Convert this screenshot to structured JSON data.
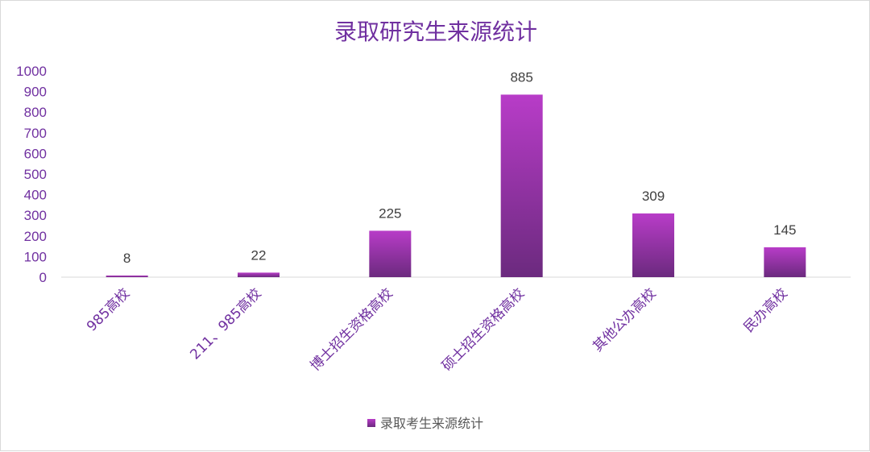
{
  "chart_data": {
    "type": "bar",
    "title": "录取研究生来源统计",
    "categories": [
      "985高校",
      "211、985高校",
      "博士招生资格高校",
      "硕士招生资格高校",
      "其他公办高校",
      "民办高校"
    ],
    "series": [
      {
        "name": "录取考生来源统计",
        "values": [
          8,
          22,
          225,
          885,
          309,
          145
        ]
      }
    ],
    "yticks": [
      "0",
      "100",
      "200",
      "300",
      "400",
      "500",
      "600",
      "700",
      "800",
      "900",
      "1000"
    ],
    "ylim": [
      0,
      1000
    ],
    "grid": false,
    "legend": "bottom",
    "colors": {
      "bar_top": "#B83CC8",
      "bar_bottom": "#6B2A7E",
      "axis_text": "#7030A0",
      "label_text": "#404040"
    }
  }
}
